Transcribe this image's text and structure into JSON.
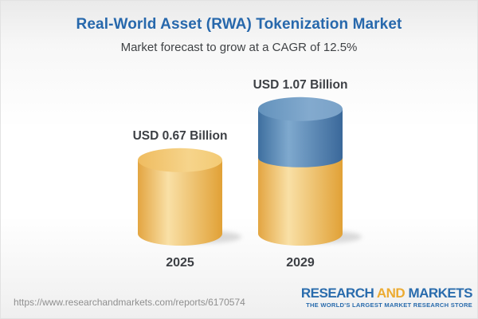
{
  "header": {
    "title": "Real-World Asset (RWA) Tokenization Market",
    "subtitle": "Market forecast to grow at a CAGR of 12.5%"
  },
  "chart_data": {
    "type": "bar",
    "title": "Real-World Asset (RWA) Tokenization Market",
    "subtitle": "Market forecast to grow at a CAGR of 12.5%",
    "unit": "USD Billion",
    "cagr_percent": 12.5,
    "categories": [
      "2025",
      "2029"
    ],
    "values": [
      0.67,
      1.07
    ],
    "value_labels": [
      "USD 0.67 Billion",
      "USD 1.07 Billion"
    ],
    "legend": "none",
    "bars": [
      {
        "category": "2025",
        "value_label": "USD 0.67 Billion",
        "total": 0.67,
        "segments": [
          {
            "name": "market-size-2025",
            "value": 0.67,
            "color": "yellow"
          }
        ]
      },
      {
        "category": "2029",
        "value_label": "USD 1.07 Billion",
        "total": 1.07,
        "segments": [
          {
            "name": "base-2025-level",
            "value": 0.67,
            "color": "yellow"
          },
          {
            "name": "growth-2025-2029",
            "value": 0.4,
            "color": "blue"
          }
        ]
      }
    ],
    "palette": {
      "yellow_body": [
        "#E3A541",
        "#F9E0A6",
        "#E1A136"
      ],
      "yellow_cap": [
        "#EFBC60",
        "#F6D48B",
        "#F3CA74"
      ],
      "blue_body": [
        "#3E6F9F",
        "#7FA9CE",
        "#3A689A"
      ],
      "blue_cap": [
        "#6392BC",
        "#83AACE",
        "#7AA2C8"
      ]
    }
  },
  "colors": {
    "title_blue": "#2768ac",
    "text_dark": "#3d4045",
    "logo_blue": "#2a6cad",
    "logo_gold": "#ecab32",
    "url_gray": "#8f8f8f"
  },
  "footer": {
    "url": "https://www.researchandmarkets.com/reports/6170574",
    "logo": {
      "part1": "RESEARCH",
      "part2": "AND",
      "part3": "MARKETS",
      "tagline": "THE WORLD'S LARGEST MARKET RESEARCH STORE"
    }
  }
}
